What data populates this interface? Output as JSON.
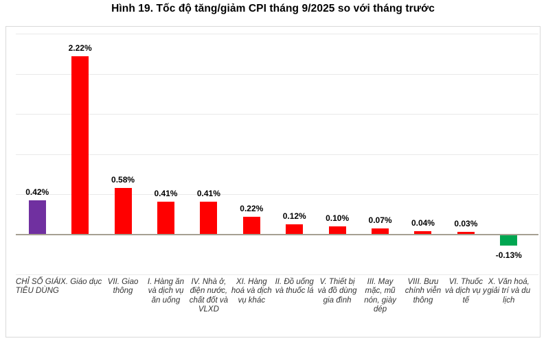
{
  "chart_data": {
    "type": "bar",
    "title": "Hình 19. Tốc độ tăng/giảm CPI tháng 9/2025 so với tháng trước",
    "categories": [
      "CHỈ SỐ GIÁ TIÊU DÙNG",
      "IX. Giáo dục",
      "VII. Giao thông",
      "I. Hàng ăn và dịch vụ ăn uống",
      "IV. Nhà ở, điện nước, chất đốt và VLXD",
      "XI. Hàng hoá và dịch vụ khác",
      "II. Đồ uống và thuốc lá",
      "V. Thiết bị và đồ dùng gia đình",
      "III. May mặc, mũ nón, giày dép",
      "VIII. Bưu chính viễn thông",
      "VI. Thuốc và dịch vụ y tế",
      "X. Văn hoá, giải trí và du lịch"
    ],
    "values": [
      0.42,
      2.22,
      0.58,
      0.41,
      0.41,
      0.22,
      0.12,
      0.1,
      0.07,
      0.04,
      0.03,
      -0.13
    ],
    "value_labels": [
      "0.42%",
      "2.22%",
      "0.58%",
      "0.41%",
      "0.41%",
      "0.22%",
      "0.12%",
      "0.10%",
      "0.07%",
      "0.04%",
      "0.03%",
      "-0.13%"
    ],
    "bar_colors": [
      "#7030A0",
      "#FF0000",
      "#FF0000",
      "#FF0000",
      "#FF0000",
      "#FF0000",
      "#FF0000",
      "#FF0000",
      "#FF0000",
      "#FF0000",
      "#FF0000",
      "#00A651"
    ],
    "xlabel": "",
    "ylabel": "",
    "ylim": [
      -0.5,
      2.5
    ],
    "gridline_step": 0.5,
    "grid": true,
    "legend": "none",
    "unit": "%",
    "gridline_color": "#E9E9E9",
    "axis_color": "#A6A092",
    "frame_border_color": "#D9D9D9",
    "value_label_color": "#000000",
    "category_label_color": "#333333"
  }
}
